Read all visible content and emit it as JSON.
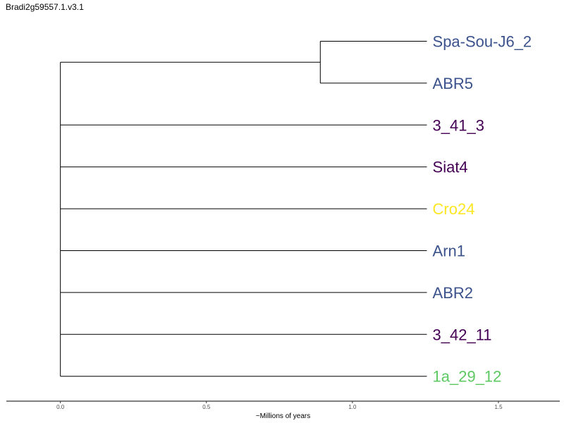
{
  "title": "Bradi2g59557.1.v3.1",
  "axis": {
    "label": "~Millions of years",
    "range": [
      -0.185,
      1.71
    ],
    "ticks": [
      {
        "value": 0.0,
        "label": "0.0"
      },
      {
        "value": 0.5,
        "label": "0.5"
      },
      {
        "value": 1.0,
        "label": "1.0"
      },
      {
        "value": 1.5,
        "label": "1.5"
      }
    ]
  },
  "tree": {
    "root_x": 0.0,
    "tip_x": 1.255,
    "inner_node": {
      "x": 0.89,
      "children": [
        0,
        1
      ]
    },
    "leaves": [
      {
        "name": "Spa-Sou-J6_2",
        "color": "#3b528b"
      },
      {
        "name": "ABR5",
        "color": "#3b528b"
      },
      {
        "name": "3_41_3",
        "color": "#440154"
      },
      {
        "name": "Siat4",
        "color": "#440154"
      },
      {
        "name": "Cro24",
        "color": "#fde725"
      },
      {
        "name": "Arn1",
        "color": "#3b528b"
      },
      {
        "name": "ABR2",
        "color": "#3b528b"
      },
      {
        "name": "3_42_11",
        "color": "#440154"
      },
      {
        "name": "1a_29_12",
        "color": "#5ec962"
      }
    ]
  }
}
